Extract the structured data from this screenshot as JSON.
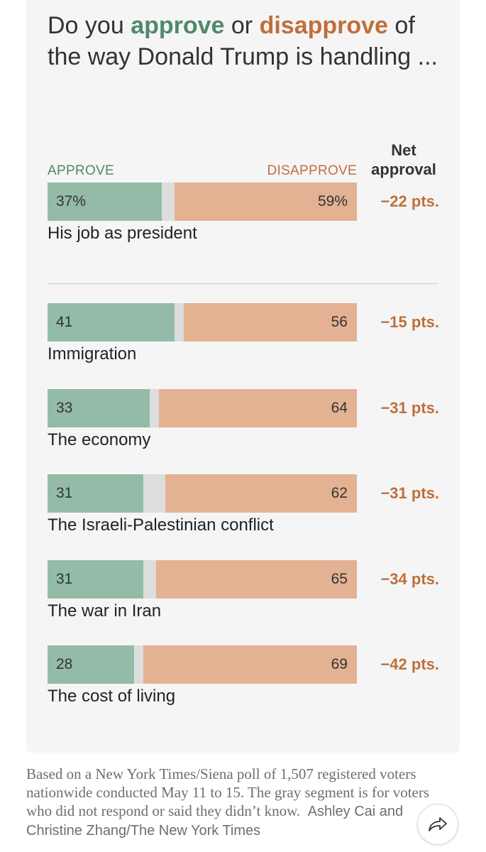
{
  "title": {
    "prefix": "Do you ",
    "approve": "approve",
    "middle": " or ",
    "disapprove": "disapprove",
    "suffix": " of the way Donald Trump is handling ..."
  },
  "headers": {
    "approve": "APPROVE",
    "disapprove": "DISAPPROVE",
    "net": "Net approval"
  },
  "footnote": {
    "text": "Based on a New York Times/Siena poll of 1,507 registered voters nationwide conducted May 11 to 15. The gray segment is for voters who did not respond or said they didn’t know.",
    "credit": "Ashley Cai and Christine Zhang/The New York Times"
  },
  "share_icon": "share-arrow-icon",
  "colors": {
    "approve": "#93bba7",
    "approve_text": "#4f8a6a",
    "disapprove": "#e3b292",
    "disapprove_text": "#bf6f3a",
    "no_answer": "#dddddd"
  },
  "chart_data": {
    "type": "bar",
    "stacked": true,
    "orientation": "horizontal",
    "title": "Do you approve or disapprove of the way Donald Trump is handling ...",
    "categories": [
      "His job as president",
      "Immigration",
      "The economy",
      "The Israeli-Palestinian conflict",
      "The war in Iran",
      "The cost of living"
    ],
    "series": [
      {
        "name": "APPROVE",
        "values": [
          37,
          41,
          33,
          31,
          31,
          28
        ]
      },
      {
        "name": "DISAPPROVE",
        "values": [
          59,
          56,
          64,
          62,
          65,
          69
        ]
      }
    ],
    "value_labels": {
      "approve": [
        "37%",
        "41",
        "33",
        "31",
        "31",
        "28"
      ],
      "disapprove": [
        "59%",
        "56",
        "64",
        "62",
        "65",
        "69"
      ]
    },
    "net_labels": [
      "−22 pts.",
      "−15 pts.",
      "−31 pts.",
      "−31 pts.",
      "−34 pts.",
      "−42 pts."
    ],
    "xlim": [
      0,
      100
    ]
  }
}
